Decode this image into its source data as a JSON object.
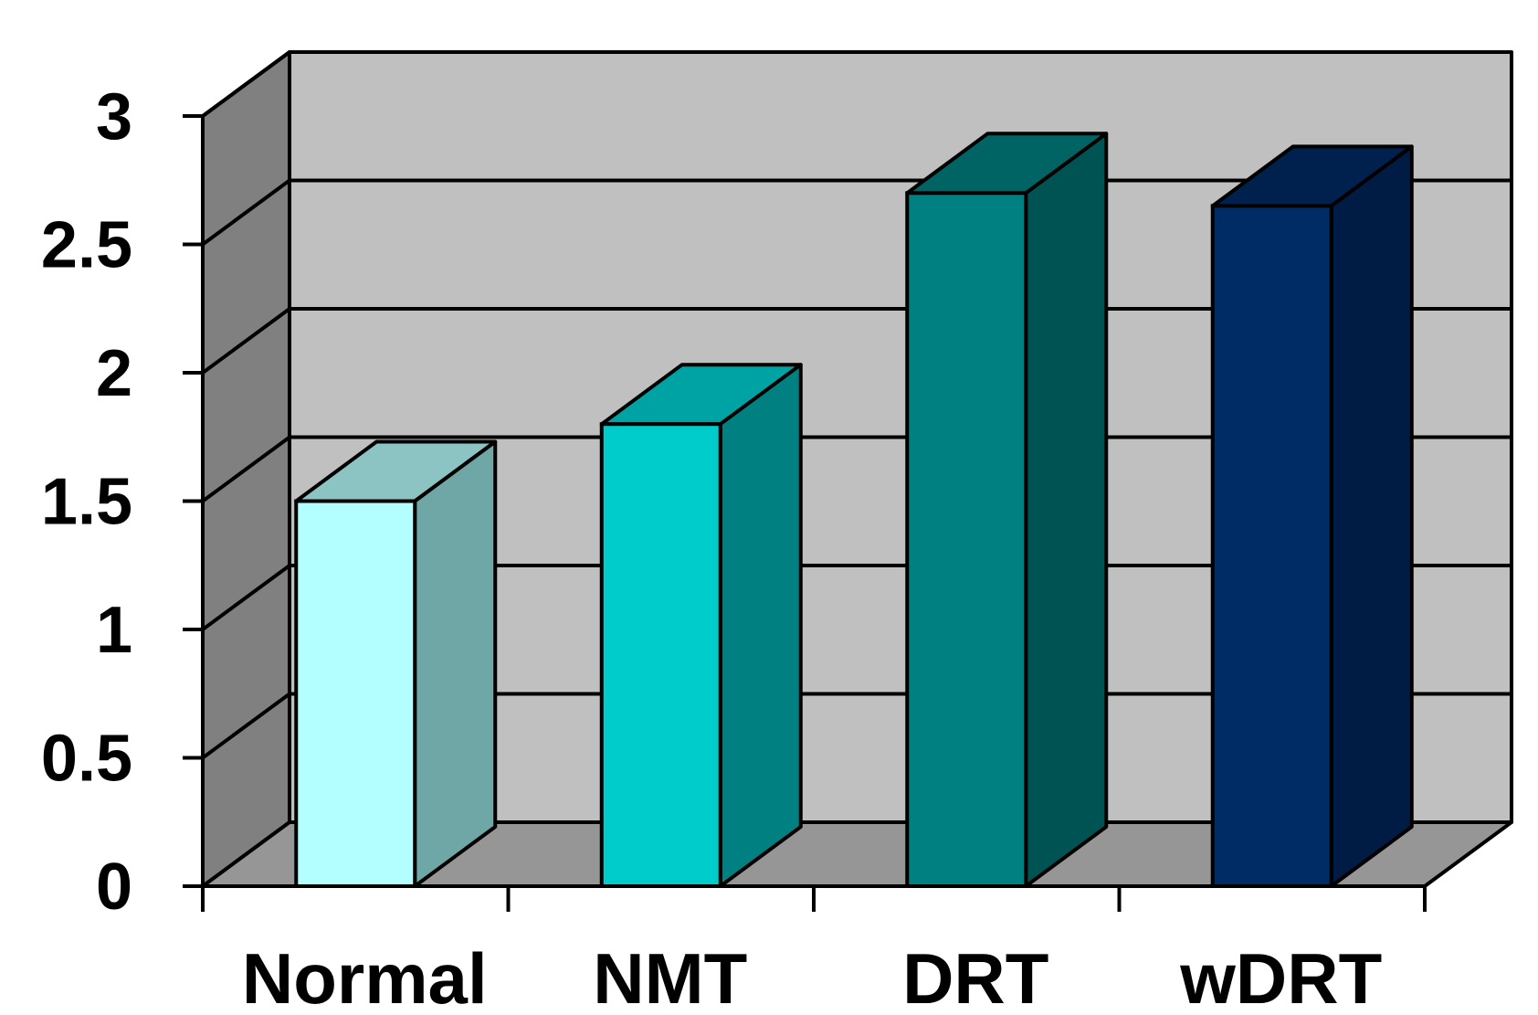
{
  "chart_data": {
    "type": "bar",
    "style": "3d-column",
    "title": "",
    "xlabel": "",
    "ylabel": "",
    "ylim": [
      0,
      3
    ],
    "ytick_step": 0.5,
    "yticks": [
      "0",
      "0.5",
      "1",
      "1.5",
      "2",
      "2.5",
      "3"
    ],
    "grid": true,
    "categories": [
      "Normal",
      "NMT",
      "DRT",
      "wDRT"
    ],
    "values": [
      1.5,
      1.8,
      2.7,
      2.65
    ],
    "colors": {
      "bars": [
        {
          "front": "#B3FFFF",
          "top": "#8CC4C4",
          "side": "#6FA6A6"
        },
        {
          "front": "#00CCCC",
          "top": "#00A3A3",
          "side": "#008080"
        },
        {
          "front": "#008080",
          "top": "#006464",
          "side": "#005353"
        },
        {
          "front": "#002C66",
          "top": "#00204D",
          "side": "#001C44"
        }
      ],
      "back_wall": "#C0C0C0",
      "side_wall": "#808080",
      "floor": "#969696"
    }
  }
}
